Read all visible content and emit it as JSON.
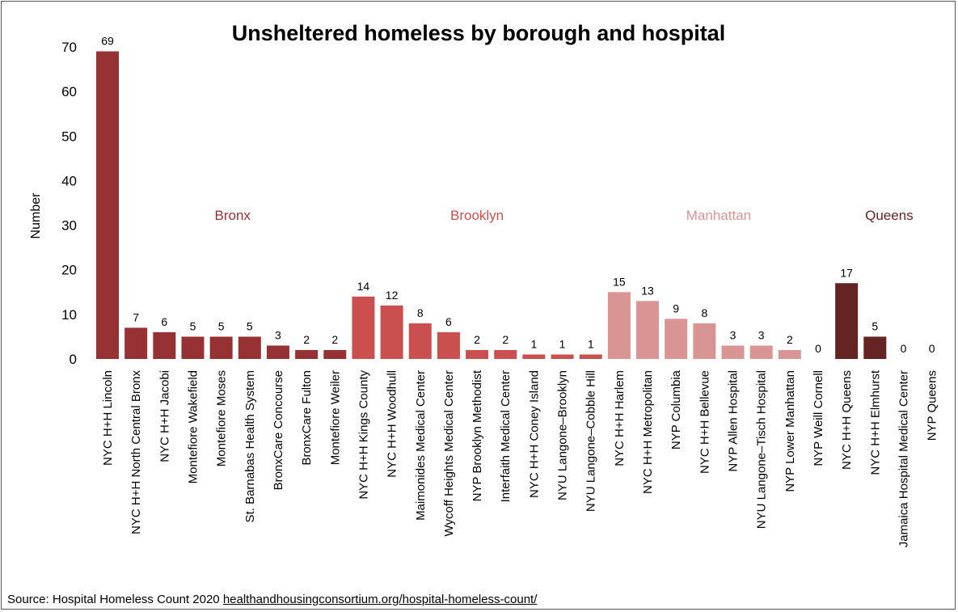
{
  "chart_data": {
    "type": "bar",
    "title": "Unsheltered homeless by borough and hospital",
    "ylabel": "Number",
    "xlabel": "",
    "ylim": [
      0,
      70
    ],
    "yticks": [
      0,
      10,
      20,
      30,
      40,
      50,
      60,
      70
    ],
    "grid": false,
    "legend": "none",
    "groups": [
      {
        "name": "Bronx",
        "color": "#963234",
        "label_color": "#963234",
        "categories": [
          "NYC H+H Lincoln",
          "NYC H+H North Central Bronx",
          "NYC H+H Jacobi",
          "Montefiore Wakefield",
          "Montefiore Moses",
          "St. Barnabas Health System",
          "BronxCare Concourse",
          "BronxCare Fulton",
          "Montefiore Weiler"
        ],
        "values": [
          69,
          7,
          6,
          5,
          5,
          5,
          3,
          2,
          2
        ]
      },
      {
        "name": "Brooklyn",
        "color": "#c9504e",
        "label_color": "#c9504e",
        "categories": [
          "NYC H+H Kings County",
          "NYC H+H Woodhull",
          "Maimonides Medical Center",
          "Wycoff Heights Medical Center",
          "NYP Brooklyn Methodist",
          "Interfaith Medical Center",
          "NYC H+H Coney Island",
          "NYU Langone–Brooklyn",
          "NYU Langone–Cobble Hill"
        ],
        "values": [
          14,
          12,
          8,
          6,
          2,
          2,
          1,
          1,
          1
        ]
      },
      {
        "name": "Manhattan",
        "color": "#d99594",
        "label_color": "#d99594",
        "categories": [
          "NYC H+H Harlem",
          "NYC H+H Metropolitan",
          "NYP Columbia",
          "NYC H+H Bellevue",
          "NYP Allen Hospital",
          "NYU Langone–Tisch Hospital",
          "NYP Lower Manhattan",
          "NYP Weill Cornell"
        ],
        "values": [
          15,
          13,
          9,
          8,
          3,
          3,
          2,
          0
        ]
      },
      {
        "name": "Queens",
        "color": "#632423",
        "label_color": "#632423",
        "categories": [
          "NYC H+H Queens",
          "NYC H+H Elmhurst",
          "Jamaica Hospital Medical Center",
          "NYP Queens"
        ],
        "values": [
          17,
          5,
          0,
          0
        ]
      }
    ]
  },
  "source": {
    "text": "Source: Hospital Homeless Count 2020 ",
    "link": "healthandhousingconsortium.org/hospital-homeless-count/"
  }
}
